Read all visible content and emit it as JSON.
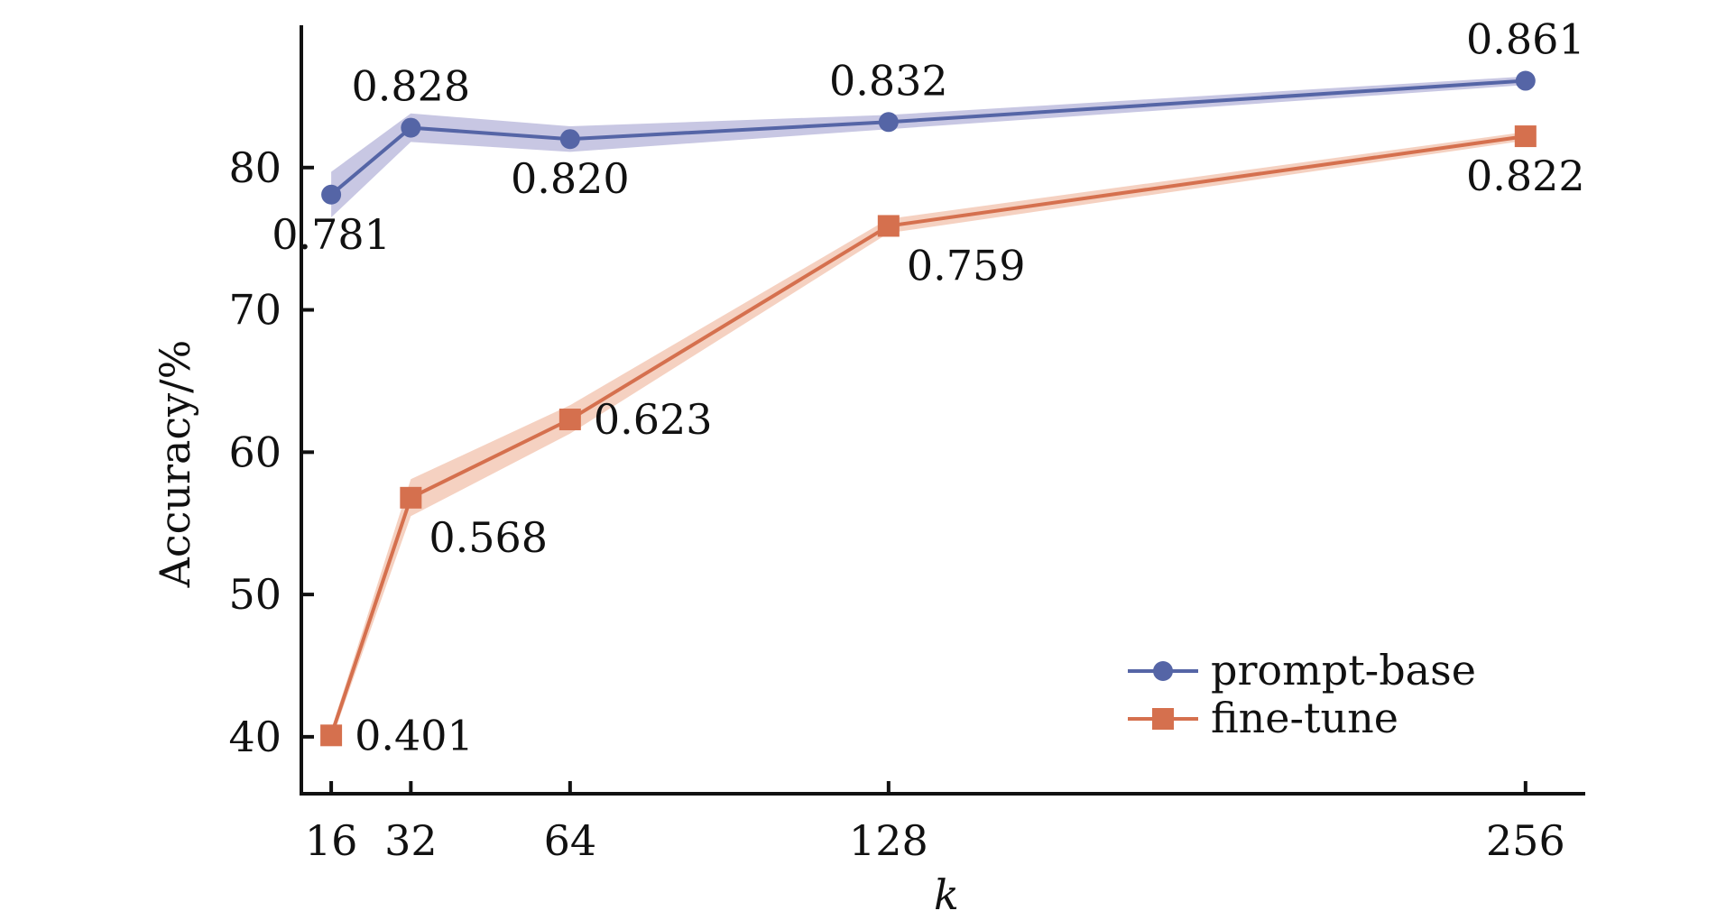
{
  "chart_data": {
    "type": "line",
    "title": "",
    "xlabel": "k",
    "ylabel": "Accuracy/%",
    "x": [
      16,
      32,
      64,
      128,
      256
    ],
    "x_tick_labels": [
      "16",
      "32",
      "64",
      "128",
      "256"
    ],
    "xlim": [
      10,
      268
    ],
    "ylim": [
      36,
      90
    ],
    "y_ticks": [
      40,
      50,
      60,
      70,
      80
    ],
    "y_tick_labels": [
      "40",
      "50",
      "60",
      "70",
      "80"
    ],
    "grid": false,
    "legend_position": "bottom-right",
    "series": [
      {
        "name": "prompt-base",
        "color": "#5565a6",
        "band_color": "#b6b4da",
        "marker": "circle",
        "values": [
          78.1,
          82.8,
          82.0,
          83.2,
          86.1
        ],
        "band": [
          1.6,
          1.0,
          0.9,
          0.5,
          0.3
        ],
        "labels": [
          "0.781",
          "0.828",
          "0.820",
          "0.832",
          "0.861"
        ],
        "label_side": [
          "below",
          "above",
          "below",
          "above",
          "above"
        ]
      },
      {
        "name": "fine-tune",
        "color": "#d5704e",
        "band_color": "#f2c2ac",
        "marker": "square",
        "values": [
          40.1,
          56.8,
          62.3,
          75.9,
          82.2
        ],
        "band": [
          0.4,
          1.3,
          1.0,
          0.5,
          0.3
        ],
        "labels": [
          "0.401",
          "0.568",
          "0.623",
          "0.759",
          "0.822"
        ],
        "label_side": [
          "right",
          "below-right",
          "right",
          "below-right",
          "below"
        ]
      }
    ]
  }
}
